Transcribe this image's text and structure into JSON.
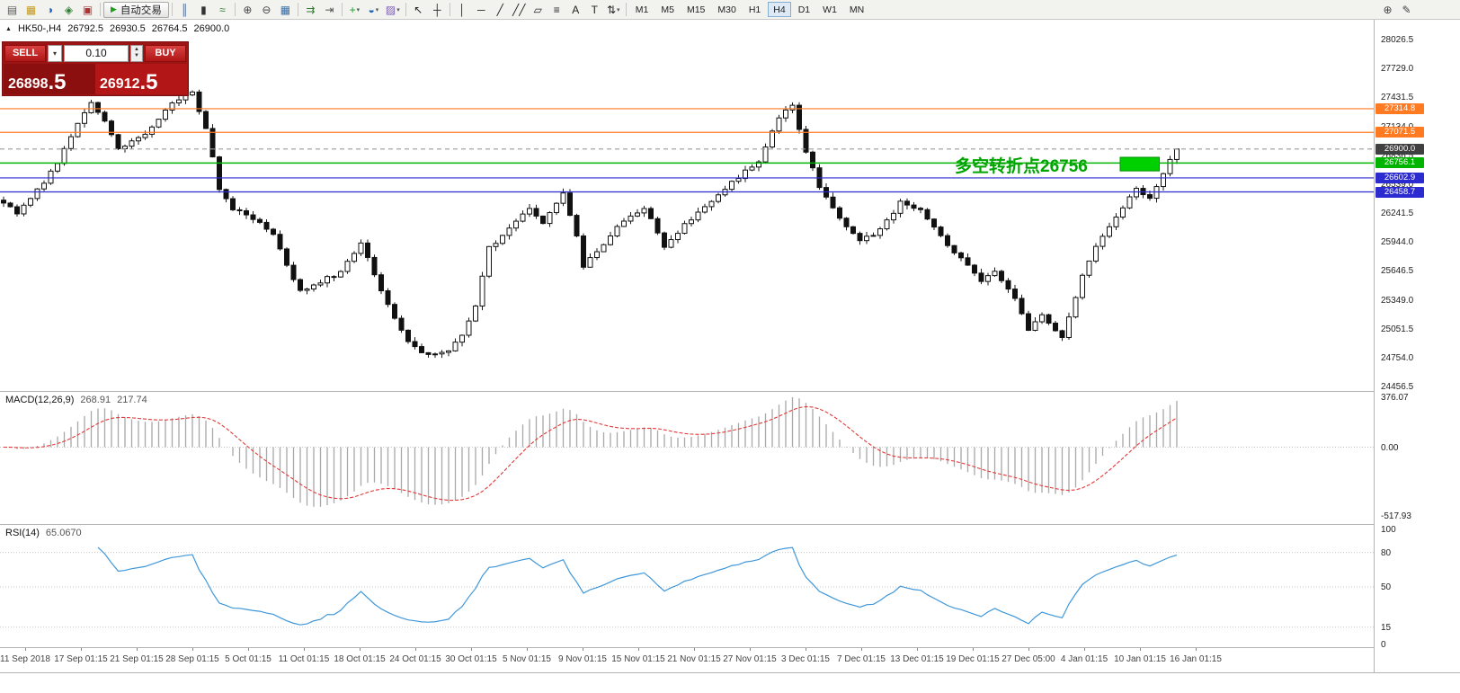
{
  "toolbar": {
    "autotrade_label": "自动交易",
    "timeframes": [
      "M1",
      "M5",
      "M15",
      "M30",
      "H1",
      "H4",
      "D1",
      "W1",
      "MN"
    ],
    "active_timeframe": "H4",
    "groups": [
      {
        "items": [
          {
            "name": "new-order-icon",
            "glyph": "▤",
            "color": "#5a5a5a"
          },
          {
            "name": "profiles-icon",
            "glyph": "▦",
            "color": "#c59a1a"
          },
          {
            "name": "market-watch-icon",
            "glyph": "◑",
            "color": "#1a63b8"
          },
          {
            "name": "navigator-icon",
            "glyph": "◈",
            "color": "#2f7d32"
          },
          {
            "name": "terminal-icon",
            "glyph": "▣",
            "color": "#b03434"
          }
        ]
      },
      {
        "items": [
          {
            "type": "autotrade",
            "name": "autotrade-button"
          }
        ]
      },
      {
        "items": [
          {
            "name": "bar-chart-icon",
            "glyph": "║",
            "color": "#40618f"
          },
          {
            "name": "candlestick-chart-icon",
            "glyph": "▮",
            "color": "#333333"
          },
          {
            "name": "line-chart-icon",
            "glyph": "≈",
            "color": "#2f7d32"
          }
        ]
      },
      {
        "items": [
          {
            "name": "zoom-in-icon",
            "glyph": "⊕",
            "color": "#444444"
          },
          {
            "name": "zoom-out-icon",
            "glyph": "⊖",
            "color": "#444444"
          },
          {
            "name": "tile-windows-icon",
            "glyph": "▦",
            "color": "#3a6ea5"
          }
        ]
      },
      {
        "items": [
          {
            "name": "auto-scroll-icon",
            "glyph": "⇉",
            "color": "#2f7d32"
          },
          {
            "name": "chart-shift-icon",
            "glyph": "⇥",
            "color": "#555555"
          }
        ]
      },
      {
        "items": [
          {
            "name": "new-chart-icon",
            "glyph": "+",
            "color": "#1f9d2f",
            "dropdown": true
          },
          {
            "name": "periods-icon",
            "glyph": "◒",
            "color": "#1a63b8",
            "dropdown": true
          },
          {
            "name": "templates-icon",
            "glyph": "▨",
            "color": "#7a5ab0",
            "dropdown": true
          }
        ]
      },
      {
        "items": [
          {
            "name": "cursor-icon",
            "glyph": "↖",
            "color": "#222222"
          },
          {
            "name": "crosshair-icon",
            "glyph": "┼",
            "color": "#222222"
          }
        ]
      },
      {
        "items": [
          {
            "name": "vertical-line-icon",
            "glyph": "│",
            "color": "#222222"
          },
          {
            "name": "horizontal-line-icon",
            "glyph": "─",
            "color": "#222222"
          },
          {
            "name": "trendline-icon",
            "glyph": "╱",
            "color": "#222222"
          },
          {
            "name": "channel-icon",
            "glyph": "╱╱",
            "color": "#222222"
          },
          {
            "name": "equidistant-channel-icon",
            "glyph": "▱",
            "color": "#222222"
          },
          {
            "name": "fibonacci-icon",
            "glyph": "≡",
            "color": "#222222"
          },
          {
            "name": "text-icon",
            "glyph": "A",
            "color": "#222222"
          },
          {
            "name": "label-icon",
            "glyph": "T",
            "color": "#222222"
          },
          {
            "name": "arrows-icon",
            "glyph": "⇅",
            "color": "#222222",
            "dropdown": true
          }
        ]
      },
      {
        "items": [
          {
            "type": "timeframes"
          }
        ]
      },
      {
        "items": [
          {
            "type": "spacer"
          }
        ],
        "nosep": true
      },
      {
        "items": [
          {
            "name": "search-icon",
            "glyph": "⊕",
            "color": "#444444"
          },
          {
            "name": "edit-icon",
            "glyph": "✎",
            "color": "#444444"
          }
        ],
        "nosep": true,
        "right": true
      }
    ]
  },
  "chart": {
    "symbol_label": "HK50-,H4",
    "ohlc": {
      "open": "26792.5",
      "high": "26930.5",
      "low": "26764.5",
      "close": "26900.0"
    }
  },
  "one_click": {
    "sell_label": "SELL",
    "buy_label": "BUY",
    "volume": "0.10",
    "sell_price": "26898.5",
    "buy_price": "26912.5"
  },
  "annotation": {
    "text": "多空转折点26756",
    "color": "#00a400"
  },
  "y_axis": {
    "top_value": 28026.5,
    "step": 297.5,
    "labels": [
      "28026.5",
      "27729.0",
      "27431.5",
      "27134.0",
      "26836.5",
      "26539.0",
      "26241.5",
      "25944.0",
      "25646.5",
      "25349.0",
      "25051.5",
      "24754.0",
      "24456.5"
    ]
  },
  "x_axis": {
    "labels": [
      "11 Sep 2018",
      "17 Sep 01:15",
      "21 Sep 01:15",
      "28 Sep 01:15",
      "5 Oct 01:15",
      "11 Oct 01:15",
      "18 Oct 01:15",
      "24 Oct 01:15",
      "30 Oct 01:15",
      "5 Nov 01:15",
      "9 Nov 01:15",
      "15 Nov 01:15",
      "21 Nov 01:15",
      "27 Nov 01:15",
      "3 Dec 01:15",
      "7 Dec 01:15",
      "13 Dec 01:15",
      "19 Dec 01:15",
      "27 Dec 05:00",
      "4 Jan 01:15",
      "10 Jan 01:15",
      "16 Jan 01:15"
    ]
  },
  "macd": {
    "title": "MACD(12,26,9)",
    "value_main": "268.91",
    "value_signal": "217.74",
    "axis_labels": [
      "376.07",
      "0.00",
      "-517.93"
    ],
    "axis_values": [
      376.07,
      0,
      -517.93
    ]
  },
  "rsi": {
    "title": "RSI(14)",
    "value": "65.0670",
    "axis_labels": [
      "100",
      "80",
      "50",
      "15",
      "0"
    ],
    "axis_values": [
      100,
      80,
      50,
      15,
      0
    ],
    "levels": [
      80,
      50,
      15
    ]
  },
  "chart_data": {
    "type": "candlestick",
    "symbol": "HK50-",
    "timeframe": "H4",
    "price_range_visible": [
      24456.5,
      28026.5
    ],
    "candle_count": 175,
    "last_close": 26900.0,
    "close_waypoints": [
      [
        0,
        26350
      ],
      [
        2,
        26230
      ],
      [
        5,
        26480
      ],
      [
        8,
        26750
      ],
      [
        11,
        27150
      ],
      [
        13,
        27400
      ],
      [
        15,
        27180
      ],
      [
        17,
        26900
      ],
      [
        19,
        26980
      ],
      [
        22,
        27120
      ],
      [
        25,
        27380
      ],
      [
        28,
        27470
      ],
      [
        30,
        27120
      ],
      [
        32,
        26500
      ],
      [
        34,
        26280
      ],
      [
        37,
        26180
      ],
      [
        40,
        26020
      ],
      [
        42,
        25700
      ],
      [
        44,
        25430
      ],
      [
        47,
        25540
      ],
      [
        50,
        25620
      ],
      [
        53,
        25940
      ],
      [
        55,
        25600
      ],
      [
        58,
        25180
      ],
      [
        60,
        24900
      ],
      [
        63,
        24780
      ],
      [
        66,
        24820
      ],
      [
        68,
        25000
      ],
      [
        70,
        25280
      ],
      [
        72,
        25880
      ],
      [
        75,
        26080
      ],
      [
        78,
        26280
      ],
      [
        80,
        26150
      ],
      [
        83,
        26440
      ],
      [
        85,
        26000
      ],
      [
        86,
        25680
      ],
      [
        89,
        25930
      ],
      [
        92,
        26180
      ],
      [
        95,
        26300
      ],
      [
        97,
        26050
      ],
      [
        98,
        25880
      ],
      [
        101,
        26130
      ],
      [
        104,
        26300
      ],
      [
        108,
        26550
      ],
      [
        112,
        26780
      ],
      [
        115,
        27230
      ],
      [
        117,
        27330
      ],
      [
        119,
        26870
      ],
      [
        121,
        26500
      ],
      [
        124,
        26180
      ],
      [
        127,
        25960
      ],
      [
        130,
        26070
      ],
      [
        133,
        26350
      ],
      [
        136,
        26270
      ],
      [
        139,
        26000
      ],
      [
        142,
        25780
      ],
      [
        145,
        25550
      ],
      [
        147,
        25630
      ],
      [
        150,
        25350
      ],
      [
        152,
        25050
      ],
      [
        154,
        25180
      ],
      [
        157,
        24970
      ],
      [
        160,
        25600
      ],
      [
        163,
        26020
      ],
      [
        166,
        26280
      ],
      [
        168,
        26500
      ],
      [
        170,
        26380
      ],
      [
        172,
        26650
      ],
      [
        174,
        26900
      ]
    ],
    "horizontal_lines": [
      {
        "label": "27314.8",
        "price": 27314.8,
        "color": "#ff7a21",
        "style": "solid",
        "role": "resistance"
      },
      {
        "label": "27071.5",
        "price": 27071.5,
        "color": "#ff7a21",
        "style": "solid",
        "role": "resistance"
      },
      {
        "label": "26900.0",
        "price": 26900.0,
        "color": "#404040",
        "line_color": "#9a9a9a",
        "style": "dashed",
        "role": "current-price"
      },
      {
        "label": "26756.1",
        "price": 26756.1,
        "color": "#00b400",
        "style": "solid",
        "role": "pivot"
      },
      {
        "label": "26602.9",
        "price": 26602.9,
        "color": "#2b2bd0",
        "style": "solid",
        "role": "support"
      },
      {
        "label": "26458.7",
        "price": 26458.7,
        "color": "#2b2bd0",
        "style": "solid",
        "role": "support"
      }
    ],
    "highlight_box": {
      "start_index": 166,
      "end_index": 171,
      "price_top": 26815,
      "price_bottom": 26675,
      "fill": "#00d000",
      "stroke": "#009000"
    },
    "indicators": [
      {
        "name": "MACD",
        "params": [
          12,
          26,
          9
        ],
        "main": 268.91,
        "signal": 217.74,
        "scale_max": 376.07,
        "scale_min": -517.93
      },
      {
        "name": "RSI",
        "params": [
          14
        ],
        "value": 65.067,
        "levels": [
          80,
          50,
          15
        ],
        "scale": [
          0,
          100
        ]
      }
    ]
  }
}
